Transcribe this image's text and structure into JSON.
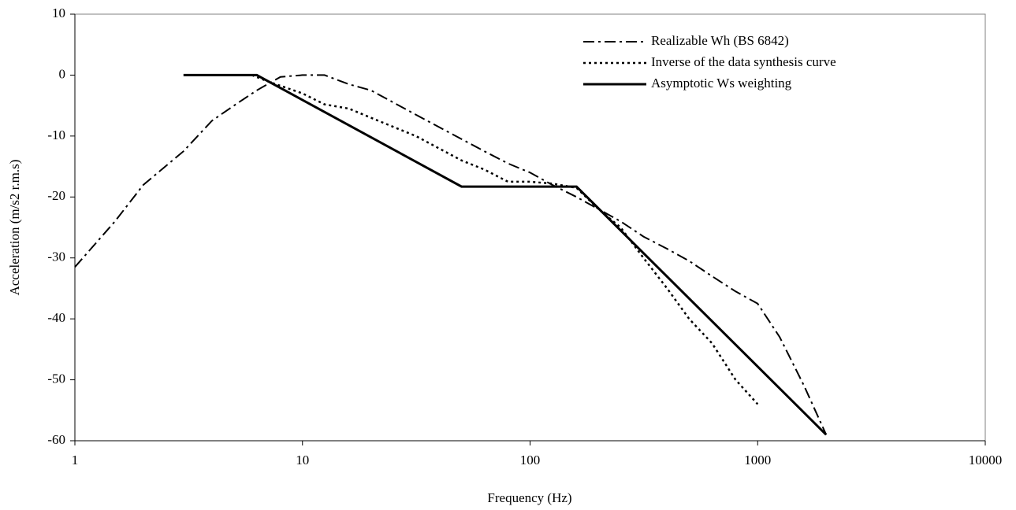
{
  "chart_data": {
    "type": "line",
    "x_label": "Frequency (Hz)",
    "y_label": "Acceleration (m/s2 r.m.s)",
    "log_x": true,
    "xlim": [
      1,
      10000
    ],
    "xticks": [
      1,
      10,
      100,
      1000,
      10000
    ],
    "ylim": [
      -60,
      10
    ],
    "yticks": [
      -60,
      -50,
      -40,
      -30,
      -20,
      -10,
      0,
      10
    ],
    "grid": false,
    "legend": "top-right",
    "series": [
      {
        "name": "Realizable Wh (BS 6842)",
        "color": "#000000",
        "line_style": "dashdot",
        "x": [
          1,
          1.5,
          2,
          3,
          4,
          5,
          6.3,
          8,
          10,
          12.5,
          16,
          20,
          31.5,
          50,
          63,
          80,
          100,
          125,
          160,
          200,
          250,
          315,
          400,
          500,
          630,
          800,
          1000,
          1250,
          1600,
          2000
        ],
        "values": [
          -31.5,
          -24,
          -18,
          -12.5,
          -7.5,
          -5,
          -2.5,
          -0.3,
          0,
          0,
          -1.5,
          -2.5,
          -6.5,
          -10.5,
          -12.5,
          -14.5,
          -16,
          -18,
          -20,
          -22,
          -24,
          -26.5,
          -28.5,
          -30.5,
          -33,
          -35.5,
          -37.5,
          -43,
          -51,
          -59
        ]
      },
      {
        "name": "Inverse of the data synthesis curve",
        "color": "#000000",
        "line_style": "dotted",
        "x": [
          6,
          7,
          10,
          12.5,
          16,
          20,
          31.5,
          50,
          63,
          80,
          100,
          125,
          160,
          200,
          250,
          315,
          400,
          500,
          630,
          800,
          1000
        ],
        "values": [
          0,
          -1,
          -3,
          -4.8,
          -5.5,
          -7,
          -10,
          -14,
          -15.5,
          -17.5,
          -17.5,
          -17.8,
          -18.5,
          -22,
          -25,
          -30,
          -35,
          -40,
          -44,
          -50,
          -54
        ]
      },
      {
        "name": "Asymptotic Ws weighting",
        "color": "#000000",
        "line_style": "solid",
        "x": [
          3,
          6.3,
          50,
          160,
          2000
        ],
        "values": [
          0,
          0,
          -18.3,
          -18.3,
          -59
        ]
      }
    ]
  }
}
